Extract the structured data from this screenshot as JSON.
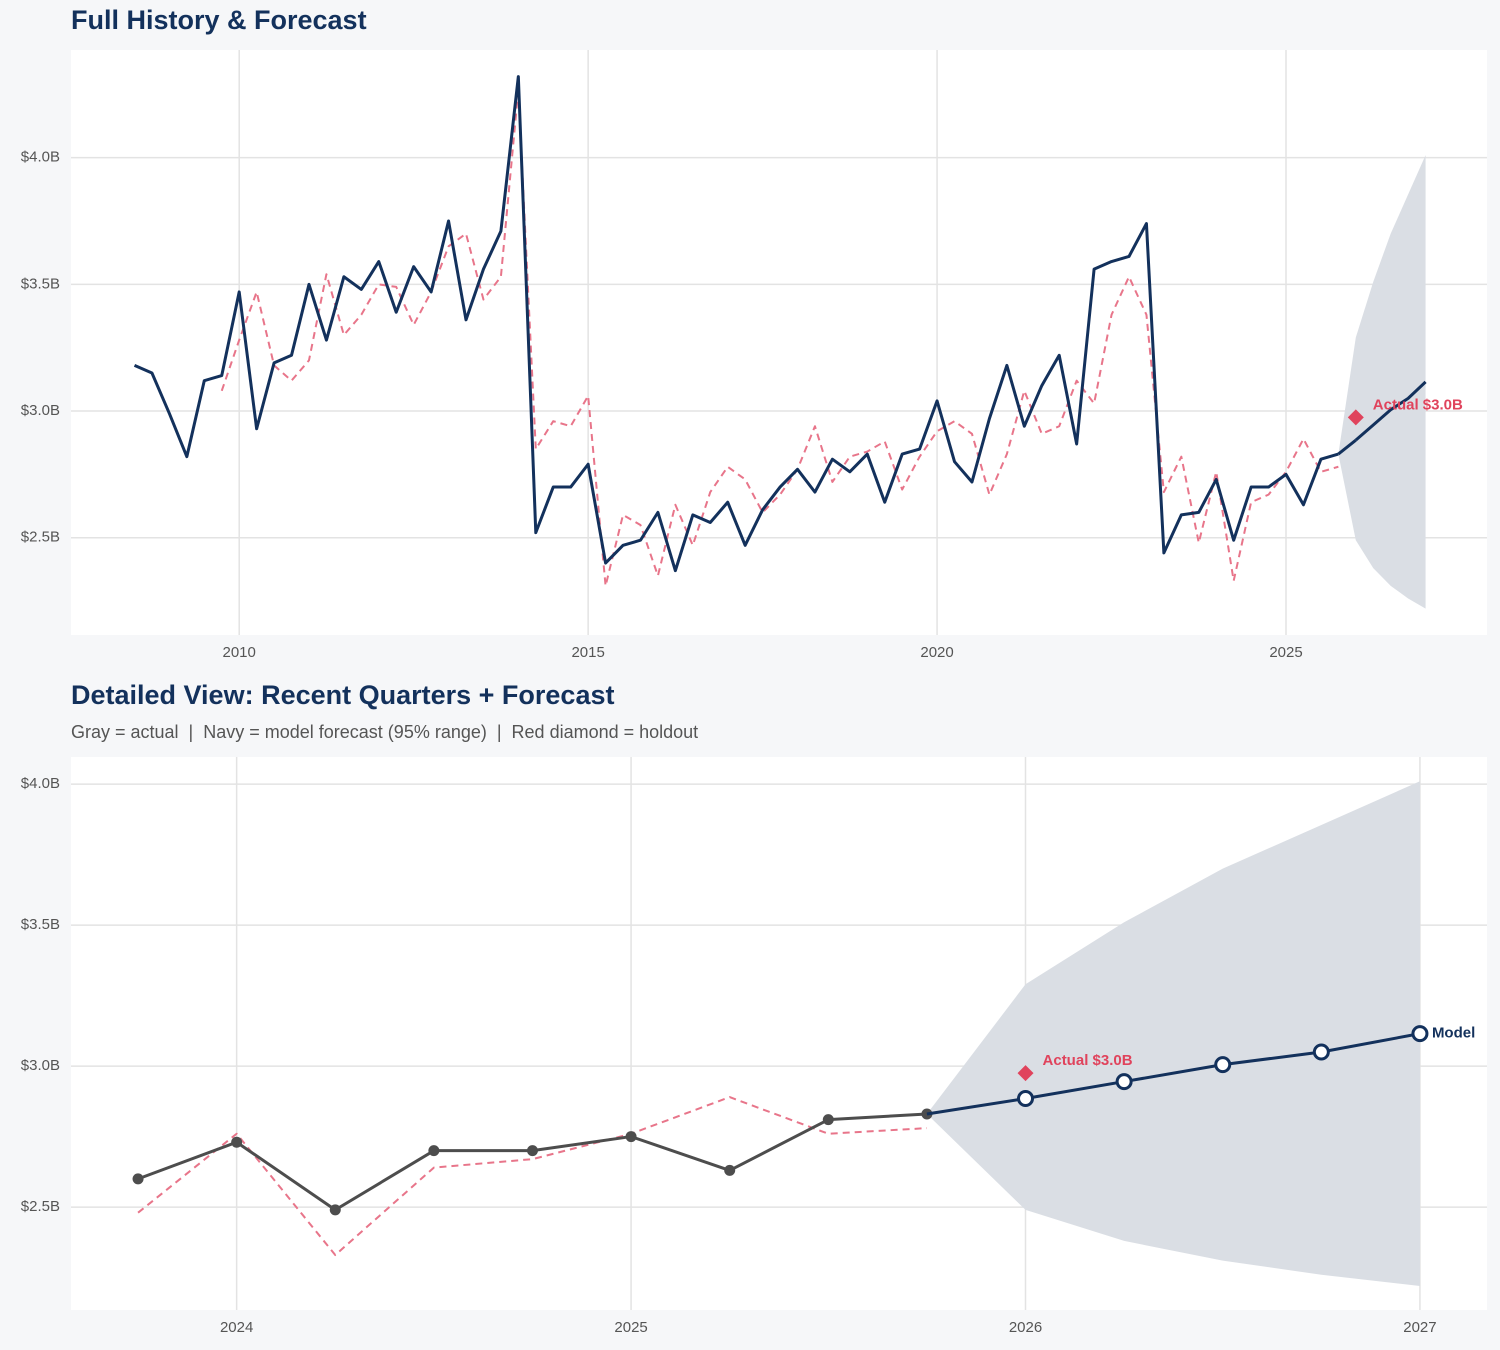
{
  "chart_data": [
    {
      "type": "line",
      "title": "Full History & Forecast",
      "xlim": [
        2007.59,
        2027.88
      ],
      "ylim": [
        2.116,
        4.425
      ],
      "xticks": [
        2010,
        2015,
        2020,
        2025
      ],
      "yticks": [
        {
          "value": 2.5,
          "label": "$2.5B"
        },
        {
          "value": 3.0,
          "label": "$3.0B"
        },
        {
          "value": 3.5,
          "label": "$3.5B"
        },
        {
          "value": 4.0,
          "label": "$4.0B"
        }
      ],
      "grid": true,
      "band": {
        "color": "#dadee4",
        "x": [
          2025.75,
          2026,
          2026.25,
          2026.5,
          2026.75,
          2027
        ],
        "lower": [
          2.83,
          2.49,
          2.38,
          2.31,
          2.26,
          2.22
        ],
        "upper": [
          2.83,
          3.29,
          3.51,
          3.7,
          3.855,
          4.01
        ]
      },
      "series": [
        {
          "color": "#e8758a",
          "dash": true,
          "x": [
            2009.75,
            2010,
            2010.25,
            2010.5,
            2010.75,
            2011,
            2011.25,
            2011.5,
            2011.75,
            2012,
            2012.25,
            2012.5,
            2012.75,
            2013,
            2013.25,
            2013.5,
            2013.75,
            2014,
            2014.25,
            2014.5,
            2014.75,
            2015,
            2015.25,
            2015.5,
            2015.75,
            2016,
            2016.25,
            2016.5,
            2016.75,
            2017,
            2017.25,
            2017.5,
            2017.75,
            2018,
            2018.25,
            2018.5,
            2018.75,
            2019,
            2019.25,
            2019.5,
            2019.75,
            2020,
            2020.25,
            2020.5,
            2020.75,
            2021,
            2021.25,
            2021.5,
            2021.75,
            2022,
            2022.25,
            2022.5,
            2022.75,
            2023,
            2023.25,
            2023.5,
            2023.75,
            2024,
            2024.25,
            2024.5,
            2024.75,
            2025,
            2025.25,
            2025.5,
            2025.75
          ],
          "values": [
            3.08,
            3.28,
            3.47,
            3.18,
            3.12,
            3.2,
            3.54,
            3.3,
            3.38,
            3.5,
            3.49,
            3.34,
            3.47,
            3.65,
            3.7,
            3.44,
            3.53,
            4.27,
            2.85,
            2.96,
            2.94,
            3.06,
            2.31,
            2.59,
            2.55,
            2.35,
            2.63,
            2.47,
            2.68,
            2.78,
            2.73,
            2.6,
            2.67,
            2.77,
            2.94,
            2.72,
            2.82,
            2.84,
            2.88,
            2.69,
            2.82,
            2.92,
            2.96,
            2.91,
            2.67,
            2.83,
            3.08,
            2.91,
            2.94,
            3.12,
            3.03,
            3.38,
            3.53,
            3.38,
            2.68,
            2.82,
            2.48,
            2.76,
            2.33,
            2.64,
            2.67,
            2.76,
            2.89,
            2.76,
            2.78
          ]
        },
        {
          "color": "#13315c",
          "x": [
            2008.5,
            2008.75,
            2009,
            2009.25,
            2009.5,
            2009.75,
            2010,
            2010.25,
            2010.5,
            2010.75,
            2011,
            2011.25,
            2011.5,
            2011.75,
            2012,
            2012.25,
            2012.5,
            2012.75,
            2013,
            2013.25,
            2013.5,
            2013.75,
            2014,
            2014.25,
            2014.5,
            2014.75,
            2015,
            2015.25,
            2015.5,
            2015.75,
            2016,
            2016.25,
            2016.5,
            2016.75,
            2017,
            2017.25,
            2017.5,
            2017.75,
            2018,
            2018.25,
            2018.5,
            2018.75,
            2019,
            2019.25,
            2019.5,
            2019.75,
            2020,
            2020.25,
            2020.5,
            2020.75,
            2021,
            2021.25,
            2021.5,
            2021.75,
            2022,
            2022.25,
            2022.5,
            2022.75,
            2023,
            2023.25,
            2023.5,
            2023.75,
            2024,
            2024.25,
            2024.5,
            2024.75,
            2025,
            2025.25,
            2025.5,
            2025.75
          ],
          "values": [
            3.18,
            3.15,
            2.99,
            2.82,
            3.12,
            3.14,
            3.47,
            2.93,
            3.19,
            3.22,
            3.5,
            3.28,
            3.53,
            3.48,
            3.59,
            3.39,
            3.57,
            3.47,
            3.75,
            3.36,
            3.56,
            3.71,
            4.32,
            2.52,
            2.7,
            2.7,
            2.79,
            2.4,
            2.47,
            2.49,
            2.6,
            2.37,
            2.59,
            2.56,
            2.64,
            2.47,
            2.61,
            2.7,
            2.77,
            2.68,
            2.81,
            2.76,
            2.83,
            2.64,
            2.83,
            2.85,
            3.04,
            2.8,
            2.72,
            2.97,
            3.18,
            2.94,
            3.1,
            3.22,
            2.87,
            3.56,
            3.59,
            3.61,
            3.74,
            2.44,
            2.59,
            2.6,
            2.73,
            2.49,
            2.7,
            2.7,
            2.75,
            2.63,
            2.81,
            2.83
          ]
        },
        {
          "color": "#13315c",
          "forecast": true,
          "x": [
            2026,
            2026.25,
            2026.5,
            2026.75,
            2027
          ],
          "values": [
            2.885,
            2.945,
            3.005,
            3.05,
            3.115
          ]
        }
      ],
      "points": [
        {
          "x": 2026,
          "value": 2.975,
          "label": "Actual $3.0B",
          "color": "#e0435c"
        }
      ]
    },
    {
      "type": "line",
      "title": "Detailed View: Recent Quarters + Forecast",
      "subtitle": "Gray = actual  |  Navy = model forecast (95% range)  |  Red diamond = holdout",
      "xlim": [
        2023.58,
        2027.17
      ],
      "ylim": [
        2.135,
        4.096
      ],
      "xticks": [
        2024,
        2025,
        2026,
        2027
      ],
      "yticks": [
        {
          "value": 2.5,
          "label": "$2.5B"
        },
        {
          "value": 3.0,
          "label": "$3.0B"
        },
        {
          "value": 3.5,
          "label": "$3.5B"
        },
        {
          "value": 4.0,
          "label": "$4.0B"
        }
      ],
      "grid": true,
      "band": {
        "color": "#dadee4",
        "x": [
          2025.75,
          2026,
          2026.25,
          2026.5,
          2026.75,
          2027
        ],
        "lower": [
          2.83,
          2.49,
          2.38,
          2.31,
          2.26,
          2.22
        ],
        "upper": [
          2.83,
          3.29,
          3.51,
          3.7,
          3.855,
          4.01
        ]
      },
      "series": [
        {
          "color": "#e8758a",
          "dash": true,
          "x": [
            2023.75,
            2024,
            2024.25,
            2024.5,
            2024.75,
            2025,
            2025.25,
            2025.5,
            2025.75
          ],
          "values": [
            2.48,
            2.76,
            2.33,
            2.64,
            2.67,
            2.76,
            2.89,
            2.76,
            2.78
          ]
        },
        {
          "color": "#4d4d4d",
          "markers": "filled",
          "x": [
            2023.75,
            2024,
            2024.25,
            2024.5,
            2024.75,
            2025,
            2025.25,
            2025.5,
            2025.75
          ],
          "values": [
            2.6,
            2.73,
            2.49,
            2.7,
            2.7,
            2.75,
            2.63,
            2.81,
            2.83
          ]
        },
        {
          "name": "Model",
          "color": "#13315c",
          "markers": "open",
          "forecast": true,
          "x": [
            2026,
            2026.25,
            2026.5,
            2026.75,
            2027
          ],
          "values": [
            2.885,
            2.945,
            3.005,
            3.05,
            3.115
          ]
        }
      ],
      "points": [
        {
          "x": 2026,
          "value": 2.975,
          "label": "Actual $3.0B",
          "color": "#e0435c"
        }
      ]
    }
  ]
}
